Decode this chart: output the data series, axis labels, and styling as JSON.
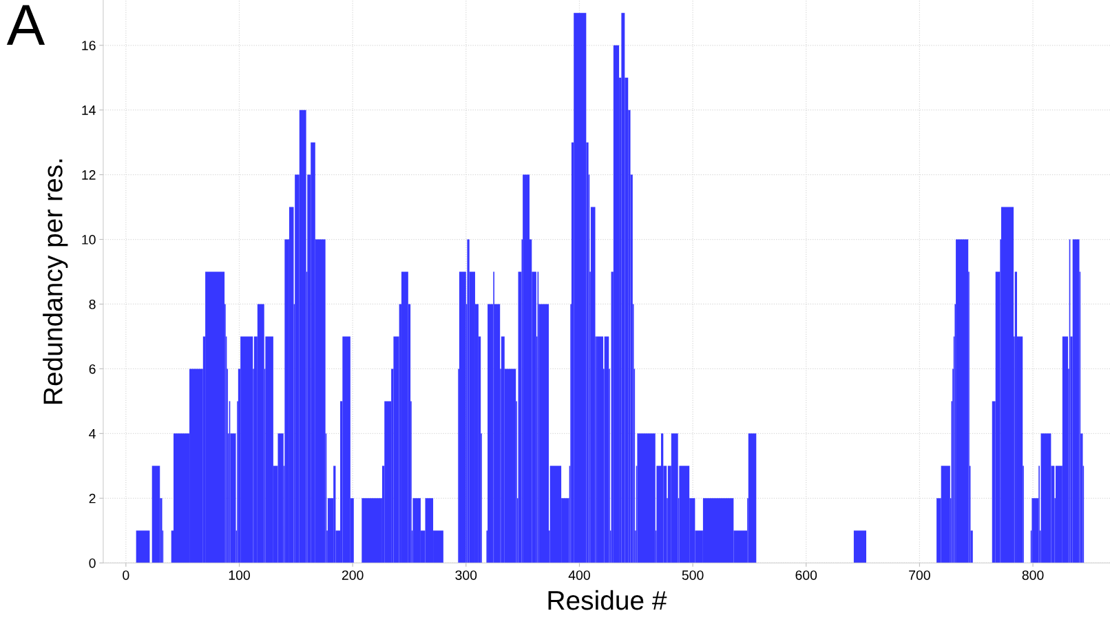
{
  "chart_data": {
    "type": "histogram",
    "xlabel": "Residue #",
    "ylabel": "Redundancy per res.",
    "annotations": [
      "A"
    ],
    "color": "#3737ff",
    "bins": [
      9,
      21,
      23,
      30,
      32,
      33,
      40,
      42,
      56,
      68,
      70,
      87,
      88,
      89,
      90,
      91,
      92,
      97,
      98,
      99,
      101,
      112,
      113,
      116,
      122,
      123,
      130,
      134,
      139,
      140,
      144,
      148,
      149,
      153,
      159,
      160,
      163,
      167,
      176,
      177,
      178,
      183,
      185,
      189,
      191,
      198,
      201,
      208,
      226,
      228,
      234,
      236,
      241,
      243,
      249,
      251,
      252,
      253,
      260,
      264,
      271,
      280,
      293,
      294,
      300,
      301,
      303,
      308,
      311,
      313,
      314,
      318,
      319,
      324,
      325,
      330,
      331,
      334,
      344,
      345,
      346,
      349,
      350,
      356,
      358,
      362,
      363,
      364,
      373,
      374,
      384,
      391,
      392,
      393,
      395,
      406,
      408,
      409,
      410,
      414,
      415,
      421,
      422,
      426,
      427,
      428,
      430,
      435,
      437,
      440,
      443,
      445,
      447,
      448,
      449,
      450,
      451,
      467,
      468,
      472,
      474,
      477,
      478,
      481,
      487,
      488,
      497,
      502,
      509,
      536,
      548,
      549,
      556,
      642,
      653,
      715,
      719,
      727,
      728,
      729,
      730,
      731,
      732,
      743,
      744,
      745,
      747,
      764,
      767,
      771,
      772,
      783,
      784,
      786,
      791,
      792,
      798,
      799,
      805,
      806,
      807,
      816,
      819,
      820,
      826,
      831,
      832,
      833,
      835,
      841,
      842,
      844,
      845
    ],
    "values": [
      1,
      0,
      3,
      2,
      1,
      0,
      1,
      4,
      6,
      7,
      9,
      8,
      7,
      6,
      4,
      5,
      4,
      1,
      5,
      6,
      7,
      6,
      7,
      8,
      6,
      7,
      3,
      4,
      3,
      10,
      11,
      8,
      12,
      14,
      9,
      12,
      13,
      10,
      4,
      1,
      2,
      3,
      1,
      5,
      7,
      2,
      0,
      2,
      3,
      5,
      6,
      7,
      8,
      9,
      8,
      5,
      1,
      2,
      1,
      2,
      1,
      0,
      6,
      9,
      8,
      10,
      9,
      8,
      7,
      4,
      0,
      1,
      8,
      9,
      8,
      6,
      7,
      6,
      5,
      2,
      9,
      10,
      12,
      10,
      9,
      7,
      9,
      8,
      1,
      3,
      2,
      3,
      8,
      13,
      17,
      13,
      12,
      9,
      11,
      7,
      7,
      6,
      7,
      6,
      1,
      9,
      16,
      15,
      17,
      15,
      14,
      12,
      8,
      6,
      1,
      3,
      4,
      1,
      3,
      4,
      3,
      2,
      3,
      4,
      2,
      3,
      2,
      1,
      2,
      1,
      2,
      4,
      0,
      1,
      0,
      2,
      3,
      2,
      5,
      6,
      7,
      8,
      10,
      9,
      3,
      1,
      0,
      5,
      9,
      10,
      11,
      7,
      9,
      7,
      3,
      0,
      1,
      2,
      3,
      1,
      4,
      3,
      2,
      3,
      7,
      6,
      10,
      7,
      10,
      9,
      4,
      3
    ],
    "xlim": [
      -20,
      868
    ],
    "ylim": [
      0,
      17.4
    ],
    "xticks": [
      0,
      100,
      200,
      300,
      400,
      500,
      600,
      700,
      800
    ],
    "yticks": [
      0,
      2,
      4,
      6,
      8,
      10,
      12,
      14,
      16
    ],
    "grid": true,
    "legend": false
  }
}
